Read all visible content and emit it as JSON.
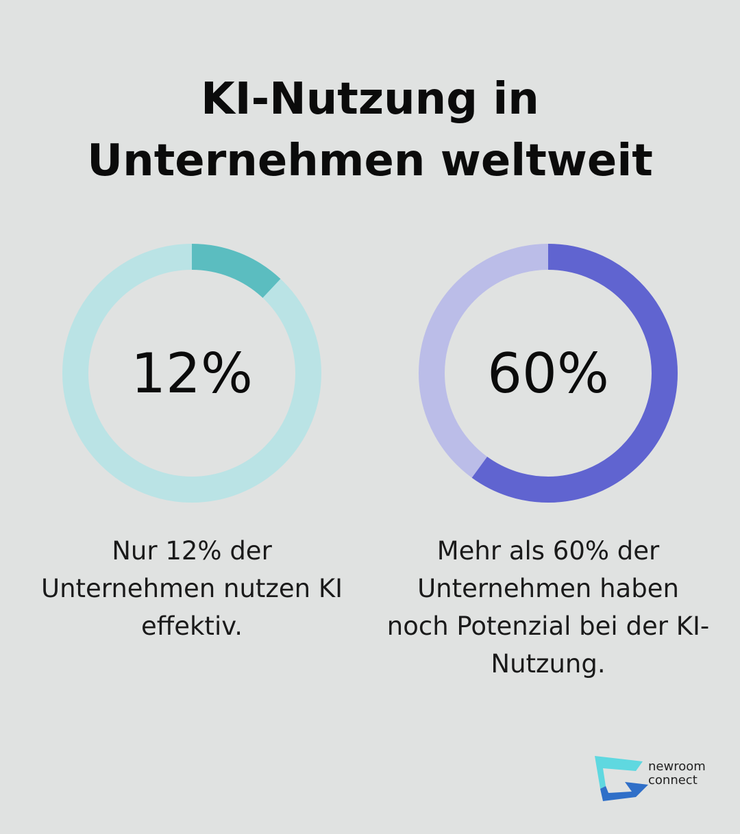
{
  "title": {
    "line1": "KI-Nutzung in",
    "line2": "Unternehmen weltweit"
  },
  "chart_data": [
    {
      "type": "pie",
      "value": 12,
      "label": "12%",
      "caption": "Nur 12% der Unternehmen nutzen KI effektiv.",
      "colors": {
        "filled": "#5bbdc0",
        "track": "#bae3e5"
      }
    },
    {
      "type": "pie",
      "value": 60,
      "label": "60%",
      "caption": "Mehr als 60% der Unternehmen haben noch Potenzial bei der KI-Nutzung.",
      "colors": {
        "filled": "#6064d0",
        "track": "#bbbde8"
      }
    }
  ],
  "logo": {
    "line1": "newroom",
    "line2": "connect",
    "colors": {
      "top": "#5fd8e0",
      "bottom": "#2f6fc8"
    }
  }
}
